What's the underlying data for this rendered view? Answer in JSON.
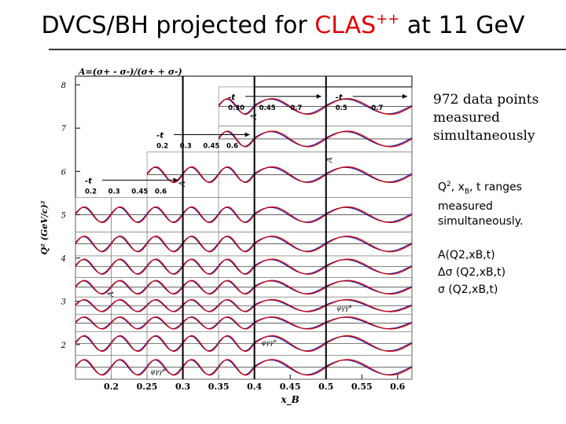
{
  "slide": {
    "title_main": "DVCS/BH projected for ",
    "title_red": "CLAS",
    "title_sup": "++",
    "title_tail": " at 11 GeV"
  },
  "side_notes": {
    "n1": [
      "972 data points",
      "measured",
      "simultaneously"
    ],
    "n2_line1_a": "Q",
    "n2_line1_sup": "2",
    "n2_line1_b": ", x",
    "n2_line1_sub": "B",
    "n2_line1_c": ", t  ranges",
    "n2_line2": "measured",
    "n2_line3": "simultaneously.",
    "n3_l1": "A(Q2,xB,t)",
    "n3_l2": "Δσ (Q2,xB,t)",
    "n3_l3": "σ (Q2,xB,t)"
  },
  "colors": {
    "red": "#e00000",
    "blue": "#2a2aa8",
    "grid": "#000000",
    "minorgrid": "#888888"
  },
  "chart_data": {
    "type": "grid of asymmetry panels",
    "formula_label": "A=(σ+ - σ-)/(σ+ + σ-)",
    "xlabel": "x_B",
    "ylabel": "Q² (GeV/c)²",
    "xlim": [
      0.15,
      0.62
    ],
    "ylim": [
      1.2,
      8.2
    ],
    "x_ticks": [
      "0.2",
      "0.25",
      "0.3",
      "0.35",
      "0.4",
      "0.45",
      "0.5",
      "0.55",
      "0.6"
    ],
    "y_ticks": [
      "2",
      "3",
      "4",
      "5",
      "6",
      "7",
      "8"
    ],
    "column_edges_xB": [
      0.15,
      0.2,
      0.25,
      0.3,
      0.35,
      0.4,
      0.5,
      0.62
    ],
    "column_top_Q2": [
      5.4,
      5.4,
      6.45,
      6.45,
      7.95,
      7.95,
      7.95
    ],
    "row_bands_Q2": [
      1.2,
      1.75,
      2.3,
      2.7,
      3.1,
      3.55,
      4.05,
      4.6,
      5.4,
      6.45,
      7.05,
      7.95
    ],
    "t_groups": [
      {
        "label": "-t",
        "bins": [
          "0.2",
          "0.3",
          "0.45",
          "0.6"
        ],
        "x_range": [
          0.15,
          0.3
        ]
      },
      {
        "label": "-t",
        "bins": [
          "0.2",
          "0.3",
          "0.45",
          "0.6"
        ],
        "x_range": [
          0.25,
          0.4
        ]
      },
      {
        "label": "-t",
        "bins": [
          "0.30",
          "0.45",
          "0.7"
        ],
        "x_range": [
          0.35,
          0.5
        ]
      },
      {
        "label": "-t",
        "bins": [
          "0.5",
          "0.7"
        ],
        "x_range": [
          0.5,
          0.62
        ]
      }
    ],
    "panel_axis_label": "A",
    "phi_label": "φγγ*",
    "series": [
      {
        "name": "projected asymmetry (red)",
        "amplitude": 0.3
      },
      {
        "name": "model curve (blue)",
        "amplitude": 0.28
      }
    ]
  }
}
